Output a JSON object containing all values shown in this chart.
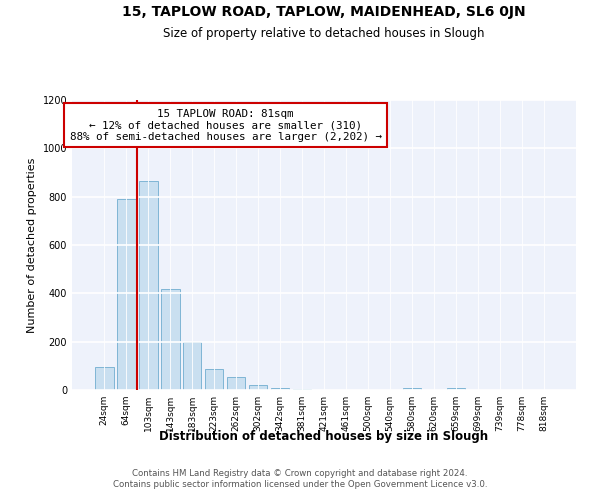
{
  "title": "15, TAPLOW ROAD, TAPLOW, MAIDENHEAD, SL6 0JN",
  "subtitle": "Size of property relative to detached houses in Slough",
  "xlabel": "Distribution of detached houses by size in Slough",
  "ylabel": "Number of detached properties",
  "bar_labels": [
    "24sqm",
    "64sqm",
    "103sqm",
    "143sqm",
    "183sqm",
    "223sqm",
    "262sqm",
    "302sqm",
    "342sqm",
    "381sqm",
    "421sqm",
    "461sqm",
    "500sqm",
    "540sqm",
    "580sqm",
    "620sqm",
    "659sqm",
    "699sqm",
    "739sqm",
    "778sqm",
    "818sqm"
  ],
  "bar_values": [
    95,
    790,
    865,
    420,
    200,
    85,
    52,
    22,
    8,
    3,
    1,
    0,
    0,
    0,
    10,
    0,
    10,
    0,
    0,
    0,
    0
  ],
  "bar_color": "#c9dff0",
  "bar_edgecolor": "#7fb5d5",
  "property_line_x": 1.5,
  "annotation_title": "15 TAPLOW ROAD: 81sqm",
  "annotation_line1": "← 12% of detached houses are smaller (310)",
  "annotation_line2": "88% of semi-detached houses are larger (2,202) →",
  "vline_color": "#cc0000",
  "box_edgecolor": "#cc0000",
  "ylim": [
    0,
    1200
  ],
  "yticks": [
    0,
    200,
    400,
    600,
    800,
    1000,
    1200
  ],
  "footnote1": "Contains HM Land Registry data © Crown copyright and database right 2024.",
  "footnote2": "Contains public sector information licensed under the Open Government Licence v3.0.",
  "background_color": "#eef2fb"
}
